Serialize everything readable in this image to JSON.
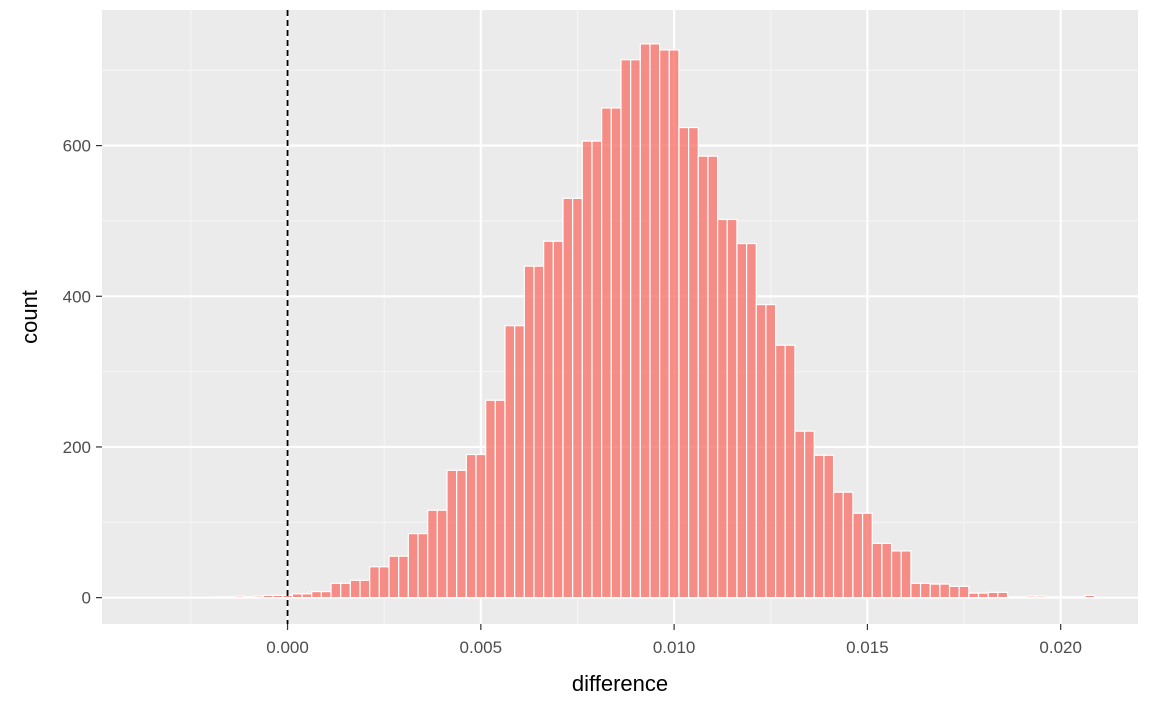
{
  "chart_data": {
    "type": "bar",
    "subtype": "histogram",
    "title": "",
    "xlabel": "difference",
    "ylabel": "count",
    "xlim": [
      -0.0048,
      0.022
    ],
    "ylim": [
      -35,
      780
    ],
    "x_ticks": [
      0.0,
      0.005,
      0.01,
      0.015,
      0.02
    ],
    "x_tick_labels": [
      "0.000",
      "0.005",
      "0.010",
      "0.015",
      "0.020"
    ],
    "y_ticks": [
      0,
      200,
      400,
      600
    ],
    "y_tick_labels": [
      "0",
      "200",
      "400",
      "600"
    ],
    "bin_width": 0.00025,
    "bin_centers": [
      -0.00175,
      -0.0015,
      -0.00125,
      -0.001,
      -0.00075,
      -0.0005,
      -0.00025,
      0.0,
      0.00025,
      0.0005,
      0.00075,
      0.001,
      0.00125,
      0.0015,
      0.00175,
      0.002,
      0.00225,
      0.0025,
      0.00275,
      0.003,
      0.00325,
      0.0035,
      0.00375,
      0.004,
      0.00425,
      0.0045,
      0.00475,
      0.005,
      0.00525,
      0.0055,
      0.00575,
      0.006,
      0.00625,
      0.0065,
      0.00675,
      0.007,
      0.00725,
      0.0075,
      0.00775,
      0.008,
      0.00825,
      0.0085,
      0.00875,
      0.009,
      0.00925,
      0.0095,
      0.00975,
      0.01,
      0.01025,
      0.0105,
      0.01075,
      0.011,
      0.01125,
      0.0115,
      0.01175,
      0.012,
      0.01225,
      0.0125,
      0.01275,
      0.013,
      0.01325,
      0.0135,
      0.01375,
      0.014,
      0.01425,
      0.0145,
      0.01475,
      0.015,
      0.01525,
      0.0155,
      0.01575,
      0.016,
      0.01625,
      0.0165,
      0.01675,
      0.017,
      0.01725,
      0.0175,
      0.01775,
      0.018,
      0.01825,
      0.0185,
      0.01875,
      0.019,
      0.01925,
      0.0195,
      0.01975,
      0.02,
      0.02025,
      0.0205,
      0.02075
    ],
    "counts": [
      1,
      1,
      2,
      1,
      2,
      3,
      3,
      3,
      5,
      5,
      8,
      8,
      19,
      19,
      23,
      23,
      41,
      41,
      55,
      55,
      85,
      85,
      116,
      116,
      169,
      169,
      190,
      190,
      262,
      262,
      361,
      361,
      440,
      440,
      473,
      473,
      530,
      530,
      606,
      606,
      650,
      650,
      714,
      714,
      735,
      735,
      727,
      727,
      624,
      624,
      586,
      586,
      502,
      502,
      470,
      470,
      389,
      389,
      335,
      335,
      221,
      221,
      189,
      189,
      140,
      140,
      112,
      112,
      72,
      72,
      62,
      62,
      19,
      19,
      18,
      18,
      15,
      15,
      6,
      6,
      7,
      7,
      1,
      1,
      2,
      2,
      1,
      1,
      1,
      1,
      3
    ],
    "reference_line": {
      "x": 0.0,
      "style": "dashed",
      "color": "#000000"
    },
    "colors": {
      "fill": "#f8766d",
      "fill_opacity": 0.8,
      "bar_outline": "#ffffff",
      "panel_background": "#ebebeb",
      "grid_major": "#ffffff",
      "grid_minor": "#f5f5f5",
      "tick_text": "#4d4d4d",
      "axis_title_text": "#000000"
    },
    "grid": true,
    "legend": "none"
  }
}
